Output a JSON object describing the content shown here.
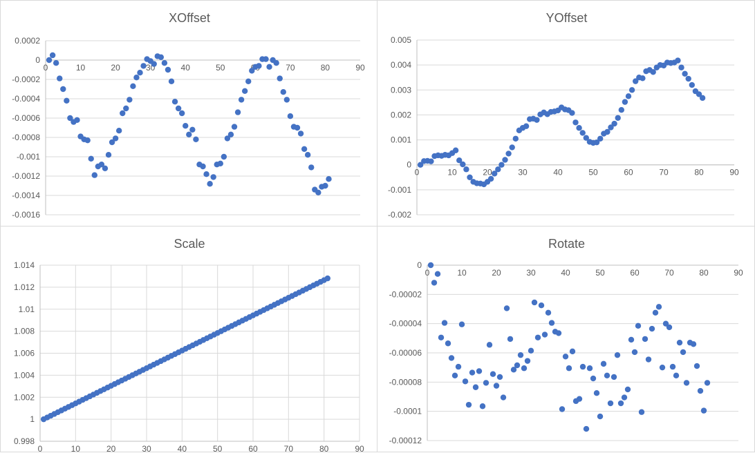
{
  "chart_data": [
    {
      "id": "xoffset",
      "type": "scatter",
      "title": "XOffset",
      "xlabel": "",
      "ylabel": "",
      "xlim": [
        0,
        90
      ],
      "ylim": [
        -0.0016,
        0.0002
      ],
      "xticks": [
        "0",
        "10",
        "20",
        "30",
        "40",
        "50",
        "60",
        "70",
        "80",
        "90"
      ],
      "yticks": [
        "0.0002",
        "0",
        "-0.0002",
        "-0.0004",
        "-0.0006",
        "-0.0008",
        "-0.001",
        "-0.0012",
        "-0.0014",
        "-0.0016"
      ],
      "x_axis_at": 0,
      "grid": "horizontal",
      "color": "#4472c4",
      "x": [
        1,
        2,
        3,
        4,
        5,
        6,
        7,
        8,
        9,
        10,
        11,
        12,
        13,
        14,
        15,
        16,
        17,
        18,
        19,
        20,
        21,
        22,
        23,
        24,
        25,
        26,
        27,
        28,
        29,
        30,
        31,
        32,
        33,
        34,
        35,
        36,
        37,
        38,
        39,
        40,
        41,
        42,
        43,
        44,
        45,
        46,
        47,
        48,
        49,
        50,
        51,
        52,
        53,
        54,
        55,
        56,
        57,
        58,
        59,
        60,
        61,
        62,
        63,
        64,
        65,
        66,
        67,
        68,
        69,
        70,
        71,
        72,
        73,
        74,
        75,
        76,
        77,
        78,
        79,
        80,
        81
      ],
      "y": [
        0.0,
        5e-05,
        -3e-05,
        -0.00019,
        -0.0003,
        -0.00042,
        -0.0006,
        -0.00064,
        -0.00062,
        -0.00079,
        -0.00082,
        -0.00083,
        -0.00102,
        -0.00119,
        -0.0011,
        -0.00108,
        -0.00112,
        -0.00098,
        -0.00085,
        -0.00081,
        -0.00073,
        -0.00055,
        -0.0005,
        -0.00041,
        -0.00027,
        -0.00018,
        -0.00013,
        -6e-05,
        1e-05,
        -1e-05,
        -4e-05,
        4e-05,
        3e-05,
        -3e-05,
        -0.0001,
        -0.00022,
        -0.00043,
        -0.0005,
        -0.00055,
        -0.00068,
        -0.00077,
        -0.00072,
        -0.00082,
        -0.00108,
        -0.0011,
        -0.00118,
        -0.00128,
        -0.00121,
        -0.00108,
        -0.00107,
        -0.001,
        -0.00081,
        -0.00077,
        -0.00069,
        -0.00054,
        -0.00041,
        -0.00032,
        -0.00022,
        -0.00011,
        -7e-05,
        -6e-05,
        1e-05,
        1e-05,
        -7e-05,
        0.0,
        -3e-05,
        -0.00019,
        -0.00033,
        -0.00041,
        -0.00058,
        -0.00069,
        -0.0007,
        -0.00076,
        -0.00092,
        -0.00098,
        -0.00111,
        -0.00134,
        -0.00137,
        -0.00131,
        -0.0013,
        -0.00123
      ]
    },
    {
      "id": "yoffset",
      "type": "scatter",
      "title": "YOffset",
      "xlabel": "",
      "ylabel": "",
      "xlim": [
        0,
        90
      ],
      "ylim": [
        -0.002,
        0.005
      ],
      "xticks": [
        "0",
        "10",
        "20",
        "30",
        "40",
        "50",
        "60",
        "70",
        "80",
        "90"
      ],
      "yticks": [
        "0.005",
        "0.004",
        "0.003",
        "0.002",
        "0.001",
        "0",
        "-0.001",
        "-0.002"
      ],
      "x_axis_at": 0,
      "grid": "horizontal",
      "color": "#4472c4",
      "x": [
        1,
        2,
        3,
        4,
        5,
        6,
        7,
        8,
        9,
        10,
        11,
        12,
        13,
        14,
        15,
        16,
        17,
        18,
        19,
        20,
        21,
        22,
        23,
        24,
        25,
        26,
        27,
        28,
        29,
        30,
        31,
        32,
        33,
        34,
        35,
        36,
        37,
        38,
        39,
        40,
        41,
        42,
        43,
        44,
        45,
        46,
        47,
        48,
        49,
        50,
        51,
        52,
        53,
        54,
        55,
        56,
        57,
        58,
        59,
        60,
        61,
        62,
        63,
        64,
        65,
        66,
        67,
        68,
        69,
        70,
        71,
        72,
        73,
        74,
        75,
        76,
        77,
        78,
        79,
        80,
        81
      ],
      "y": [
        0.0,
        0.00015,
        0.00016,
        0.00014,
        0.00035,
        0.00038,
        0.00036,
        0.0004,
        0.00038,
        0.00047,
        0.00058,
        0.00018,
        2e-05,
        -0.00018,
        -0.0005,
        -0.00068,
        -0.00074,
        -0.00075,
        -0.00078,
        -0.00068,
        -0.00056,
        -0.00035,
        -0.00018,
        0.0,
        0.0002,
        0.00045,
        0.0007,
        0.00105,
        0.00138,
        0.00148,
        0.00155,
        0.00183,
        0.00185,
        0.0018,
        0.00202,
        0.0021,
        0.00203,
        0.00212,
        0.00214,
        0.00218,
        0.0023,
        0.00222,
        0.00219,
        0.00208,
        0.0017,
        0.00148,
        0.00128,
        0.00108,
        0.00092,
        0.00088,
        0.0009,
        0.00105,
        0.00125,
        0.00132,
        0.0015,
        0.00165,
        0.00188,
        0.0022,
        0.00252,
        0.00275,
        0.003,
        0.00335,
        0.0035,
        0.00347,
        0.00375,
        0.0038,
        0.00372,
        0.0039,
        0.004,
        0.00398,
        0.0041,
        0.00408,
        0.0041,
        0.00418,
        0.0039,
        0.00365,
        0.00345,
        0.0032,
        0.00295,
        0.00283,
        0.00268
      ]
    },
    {
      "id": "scale",
      "type": "scatter",
      "title": "Scale",
      "xlabel": "",
      "ylabel": "",
      "xlim": [
        0,
        90
      ],
      "ylim": [
        0.998,
        1.014
      ],
      "xticks": [
        "0",
        "10",
        "20",
        "30",
        "40",
        "50",
        "60",
        "70",
        "80",
        "90"
      ],
      "yticks": [
        "1.014",
        "1.012",
        "1.01",
        "1.008",
        "1.006",
        "1.004",
        "1.002",
        "1",
        "0.998"
      ],
      "x_axis_at": 0.998,
      "grid": "both",
      "color": "#4472c4",
      "linear": {
        "x_start": 1,
        "x_end": 81,
        "y_start": 1.0,
        "y_end": 1.0128
      }
    },
    {
      "id": "rotate",
      "type": "scatter",
      "title": "Rotate",
      "xlabel": "",
      "ylabel": "",
      "xlim": [
        0,
        90
      ],
      "ylim": [
        -0.00012,
        0
      ],
      "xticks": [
        "0",
        "10",
        "20",
        "30",
        "40",
        "50",
        "60",
        "70",
        "80",
        "90"
      ],
      "yticks": [
        "0",
        "-0.00002",
        "-0.00004",
        "-0.00006",
        "-0.00008",
        "-0.0001",
        "-0.00012"
      ],
      "x_axis_at": 0,
      "grid": "horizontal",
      "color": "#4472c4",
      "x": [
        1,
        2,
        3,
        4,
        5,
        6,
        7,
        8,
        9,
        10,
        11,
        12,
        13,
        14,
        15,
        16,
        17,
        18,
        19,
        20,
        21,
        22,
        23,
        24,
        25,
        26,
        27,
        28,
        29,
        30,
        31,
        32,
        33,
        34,
        35,
        36,
        37,
        38,
        39,
        40,
        41,
        42,
        43,
        44,
        45,
        46,
        47,
        48,
        49,
        50,
        51,
        52,
        53,
        54,
        55,
        56,
        57,
        58,
        59,
        60,
        61,
        62,
        63,
        64,
        65,
        66,
        67,
        68,
        69,
        70,
        71,
        72,
        73,
        74,
        75,
        76,
        77,
        78,
        79,
        80,
        81
      ],
      "y": [
        -0.0,
        -1.2e-05,
        -6e-06,
        -4.95e-05,
        -3.95e-05,
        -5.35e-05,
        -6.35e-05,
        -7.55e-05,
        -6.95e-05,
        -4.05e-05,
        -7.95e-05,
        -9.55e-05,
        -7.35e-05,
        -8.35e-05,
        -7.25e-05,
        -9.65e-05,
        -8.05e-05,
        -5.45e-05,
        -7.45e-05,
        -8.25e-05,
        -7.65e-05,
        -9.05e-05,
        -2.95e-05,
        -5.05e-05,
        -7.15e-05,
        -6.85e-05,
        -6.15e-05,
        -7.05e-05,
        -6.55e-05,
        -5.85e-05,
        -2.55e-05,
        -4.95e-05,
        -2.75e-05,
        -4.75e-05,
        -3.25e-05,
        -3.95e-05,
        -4.55e-05,
        -4.65e-05,
        -9.85e-05,
        -6.25e-05,
        -7.05e-05,
        -5.9e-05,
        -9.3e-05,
        -9.15e-05,
        -6.95e-05,
        -0.000112,
        -7.05e-05,
        -7.75e-05,
        -8.75e-05,
        -0.0001035,
        -6.75e-05,
        -7.55e-05,
        -9.45e-05,
        -7.65e-05,
        -6.15e-05,
        -9.45e-05,
        -9.05e-05,
        -8.5e-05,
        -5.1e-05,
        -5.95e-05,
        -4.15e-05,
        -0.0001005,
        -5.05e-05,
        -6.45e-05,
        -4.35e-05,
        -3.25e-05,
        -2.85e-05,
        -7e-05,
        -4e-05,
        -4.25e-05,
        -6.95e-05,
        -7.55e-05,
        -5.3e-05,
        -5.95e-05,
        -8.05e-05,
        -5.3e-05,
        -5.4e-05,
        -6.9e-05,
        -8.6e-05,
        -9.95e-05,
        -8.05e-05
      ]
    }
  ]
}
